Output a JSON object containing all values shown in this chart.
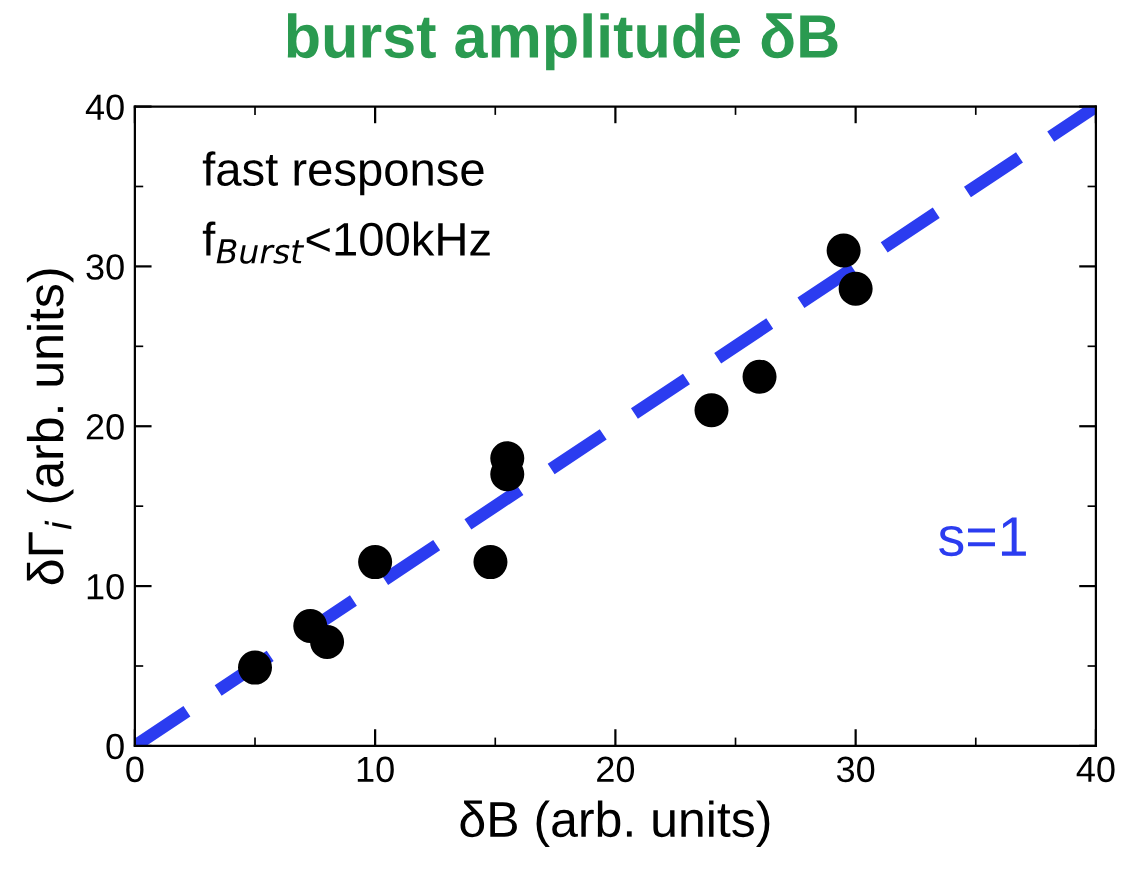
{
  "chart_data": {
    "type": "scatter",
    "title": "burst amplitude δB",
    "xlabel": "δB (arb. units)",
    "ylabel": "δΓ$_{i}$ (arb. units)",
    "annotations": [
      "fast response",
      "f$_{Burst}$<100kHz"
    ],
    "xlim": [
      0,
      40
    ],
    "ylim": [
      0,
      40
    ],
    "xticks": [
      0,
      10,
      20,
      30,
      40
    ],
    "yticks": [
      0,
      10,
      20,
      30,
      40
    ],
    "grid": false,
    "legend": false,
    "series": [
      {
        "color": "#000000",
        "marker": "circle",
        "x": [
          5,
          7.3,
          8,
          10,
          14.8,
          15.5,
          15.5,
          24,
          26,
          29.5,
          30
        ],
        "values": [
          4.9,
          7.5,
          6.5,
          11.5,
          11.5,
          18,
          17,
          21,
          23.1,
          31,
          28.6
        ]
      },
      {
        "type": "line",
        "name": "s=1",
        "color": "#2b3cf0",
        "line_style": "dashed",
        "x": [
          0,
          40
        ],
        "values": [
          0,
          40
        ]
      }
    ]
  }
}
